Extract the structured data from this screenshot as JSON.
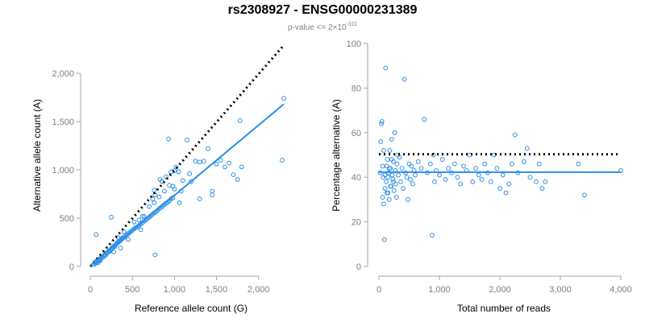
{
  "title": "rs2308927 - ENSG00000231389",
  "subtitle": {
    "prefix": "p-value <= 2×10",
    "exponent": "-311"
  },
  "colors": {
    "points": "#2c8ee8",
    "fit": "#2c8ee8",
    "reference": "#000000",
    "axis": "#a6a6a6",
    "tick_text": "#7f7f7f"
  },
  "chart_data": [
    {
      "type": "scatter",
      "xlabel": "Reference allele count (G)",
      "ylabel": "Alternative allele count (A)",
      "xlim": [
        0,
        2300
      ],
      "ylim": [
        0,
        2300
      ],
      "xticks": [
        0,
        500,
        1000,
        1500,
        2000
      ],
      "xtick_labels": [
        "0",
        "500",
        "1,000",
        "1,500",
        "2,000"
      ],
      "yticks": [
        0,
        500,
        1000,
        1500,
        2000
      ],
      "ytick_labels": [
        "0",
        "500",
        "1,000",
        "1,500",
        "2,000"
      ],
      "grid": false,
      "reference_line": {
        "style": "dotted",
        "points": [
          [
            0,
            0
          ],
          [
            2300,
            2290
          ]
        ]
      },
      "fit_line": {
        "style": "solid",
        "points": [
          [
            0,
            10
          ],
          [
            2300,
            1680
          ]
        ]
      },
      "points": [
        [
          40,
          20
        ],
        [
          55,
          30
        ],
        [
          60,
          50
        ],
        [
          70,
          35
        ],
        [
          80,
          45
        ],
        [
          85,
          60
        ],
        [
          90,
          55
        ],
        [
          95,
          40
        ],
        [
          100,
          70
        ],
        [
          105,
          65
        ],
        [
          110,
          80
        ],
        [
          115,
          60
        ],
        [
          120,
          75
        ],
        [
          130,
          90
        ],
        [
          140,
          100
        ],
        [
          150,
          95
        ],
        [
          160,
          110
        ],
        [
          170,
          120
        ],
        [
          180,
          115
        ],
        [
          190,
          135
        ],
        [
          200,
          140
        ],
        [
          210,
          150
        ],
        [
          220,
          160
        ],
        [
          230,
          155
        ],
        [
          240,
          170
        ],
        [
          250,
          185
        ],
        [
          260,
          190
        ],
        [
          270,
          200
        ],
        [
          280,
          210
        ],
        [
          290,
          205
        ],
        [
          300,
          220
        ],
        [
          310,
          235
        ],
        [
          320,
          240
        ],
        [
          330,
          250
        ],
        [
          340,
          255
        ],
        [
          350,
          265
        ],
        [
          360,
          270
        ],
        [
          370,
          280
        ],
        [
          380,
          290
        ],
        [
          390,
          300
        ],
        [
          400,
          300
        ],
        [
          420,
          320
        ],
        [
          440,
          330
        ],
        [
          460,
          345
        ],
        [
          480,
          360
        ],
        [
          500,
          375
        ],
        [
          520,
          390
        ],
        [
          540,
          400
        ],
        [
          560,
          410
        ],
        [
          580,
          425
        ],
        [
          600,
          440
        ],
        [
          620,
          450
        ],
        [
          640,
          470
        ],
        [
          660,
          480
        ],
        [
          680,
          495
        ],
        [
          700,
          510
        ],
        [
          720,
          525
        ],
        [
          740,
          540
        ],
        [
          760,
          555
        ],
        [
          780,
          565
        ],
        [
          800,
          580
        ],
        [
          820,
          600
        ],
        [
          840,
          610
        ],
        [
          860,
          625
        ],
        [
          880,
          640
        ],
        [
          900,
          655
        ],
        [
          920,
          665
        ],
        [
          940,
          680
        ],
        [
          960,
          700
        ],
        [
          980,
          710
        ],
        [
          70,
          330
        ],
        [
          250,
          510
        ],
        [
          330,
          300
        ],
        [
          360,
          190
        ],
        [
          770,
          120
        ],
        [
          280,
          150
        ],
        [
          400,
          360
        ],
        [
          450,
          280
        ],
        [
          600,
          380
        ],
        [
          620,
          520
        ],
        [
          700,
          620
        ],
        [
          740,
          700
        ],
        [
          760,
          790
        ],
        [
          770,
          740
        ],
        [
          830,
          900
        ],
        [
          850,
          880
        ],
        [
          900,
          930
        ],
        [
          930,
          1320
        ],
        [
          960,
          980
        ],
        [
          1000,
          990
        ],
        [
          1000,
          800
        ],
        [
          1020,
          1030
        ],
        [
          1060,
          660
        ],
        [
          1100,
          890
        ],
        [
          1150,
          1310
        ],
        [
          1180,
          960
        ],
        [
          1200,
          880
        ],
        [
          1250,
          1090
        ],
        [
          1300,
          700
        ],
        [
          1300,
          1080
        ],
        [
          1350,
          1090
        ],
        [
          1400,
          1220
        ],
        [
          1450,
          780
        ],
        [
          1450,
          740
        ],
        [
          1500,
          1060
        ],
        [
          1550,
          1100
        ],
        [
          1600,
          1030
        ],
        [
          1650,
          1070
        ],
        [
          1700,
          950
        ],
        [
          1750,
          900
        ],
        [
          1780,
          1510
        ],
        [
          1800,
          1030
        ],
        [
          2280,
          1100
        ],
        [
          2300,
          1740
        ],
        [
          940,
          840
        ],
        [
          980,
          830
        ],
        [
          1050,
          980
        ],
        [
          1080,
          780
        ],
        [
          880,
          780
        ],
        [
          820,
          720
        ],
        [
          760,
          660
        ],
        [
          640,
          520
        ],
        [
          580,
          480
        ],
        [
          520,
          460
        ]
      ]
    },
    {
      "type": "scatter",
      "xlabel": "Total number of reads",
      "ylabel": "Percentage alternative (A)",
      "xlim": [
        0,
        4000
      ],
      "ylim": [
        0,
        100
      ],
      "xticks": [
        0,
        1000,
        2000,
        3000,
        4000
      ],
      "xtick_labels": [
        "0",
        "1,000",
        "2,000",
        "3,000",
        "4,000"
      ],
      "yticks": [
        0,
        20,
        40,
        60,
        80,
        100
      ],
      "ytick_labels": [
        "0",
        "20",
        "40",
        "60",
        "80",
        "100"
      ],
      "grid": false,
      "reference_line": {
        "style": "dotted",
        "points": [
          [
            0,
            50.3
          ],
          [
            4000,
            50.3
          ]
        ]
      },
      "fit_line": {
        "style": "solid",
        "points": [
          [
            0,
            42.3
          ],
          [
            4000,
            42.3
          ]
        ]
      },
      "points": [
        [
          20,
          42
        ],
        [
          30,
          56
        ],
        [
          40,
          64
        ],
        [
          50,
          65
        ],
        [
          60,
          31
        ],
        [
          70,
          40
        ],
        [
          80,
          28
        ],
        [
          90,
          12
        ],
        [
          100,
          35
        ],
        [
          110,
          89
        ],
        [
          120,
          38
        ],
        [
          130,
          45
        ],
        [
          140,
          48
        ],
        [
          150,
          33
        ],
        [
          160,
          42
        ],
        [
          170,
          30
        ],
        [
          180,
          52
        ],
        [
          190,
          44
        ],
        [
          200,
          36
        ],
        [
          210,
          57
        ],
        [
          220,
          41
        ],
        [
          230,
          39
        ],
        [
          240,
          47
        ],
        [
          250,
          34
        ],
        [
          260,
          60
        ],
        [
          270,
          43
        ],
        [
          280,
          37
        ],
        [
          290,
          31
        ],
        [
          300,
          46
        ],
        [
          310,
          50
        ],
        [
          320,
          41
        ],
        [
          340,
          49
        ],
        [
          360,
          38
        ],
        [
          380,
          44
        ],
        [
          400,
          35
        ],
        [
          420,
          84
        ],
        [
          440,
          42
        ],
        [
          460,
          40
        ],
        [
          480,
          30
        ],
        [
          500,
          46
        ],
        [
          520,
          39
        ],
        [
          540,
          45
        ],
        [
          560,
          37
        ],
        [
          580,
          43
        ],
        [
          600,
          41
        ],
        [
          650,
          47
        ],
        [
          700,
          44
        ],
        [
          750,
          66
        ],
        [
          800,
          42
        ],
        [
          850,
          46
        ],
        [
          880,
          14
        ],
        [
          900,
          50
        ],
        [
          920,
          38
        ],
        [
          950,
          43
        ],
        [
          1000,
          41
        ],
        [
          1050,
          48
        ],
        [
          1100,
          39
        ],
        [
          1150,
          44
        ],
        [
          1200,
          42
        ],
        [
          1250,
          46
        ],
        [
          1300,
          40
        ],
        [
          1350,
          37
        ],
        [
          1400,
          45
        ],
        [
          1450,
          43
        ],
        [
          1500,
          50
        ],
        [
          1550,
          38
        ],
        [
          1600,
          44
        ],
        [
          1650,
          41
        ],
        [
          1700,
          39
        ],
        [
          1750,
          46
        ],
        [
          1800,
          42
        ],
        [
          1850,
          38
        ],
        [
          1900,
          50
        ],
        [
          1950,
          44
        ],
        [
          2000,
          35
        ],
        [
          2050,
          41
        ],
        [
          2100,
          33
        ],
        [
          2150,
          37
        ],
        [
          2200,
          46
        ],
        [
          2250,
          59
        ],
        [
          2300,
          42
        ],
        [
          2400,
          47
        ],
        [
          2450,
          53
        ],
        [
          2500,
          40
        ],
        [
          2600,
          38
        ],
        [
          2650,
          46
        ],
        [
          2700,
          35
        ],
        [
          2750,
          38
        ],
        [
          3300,
          46
        ],
        [
          3400,
          32
        ],
        [
          4000,
          43
        ],
        [
          60,
          45
        ],
        [
          80,
          52
        ],
        [
          100,
          41
        ],
        [
          130,
          33
        ],
        [
          150,
          40
        ],
        [
          170,
          44
        ],
        [
          190,
          36
        ],
        [
          210,
          48
        ],
        [
          240,
          38
        ]
      ]
    }
  ]
}
